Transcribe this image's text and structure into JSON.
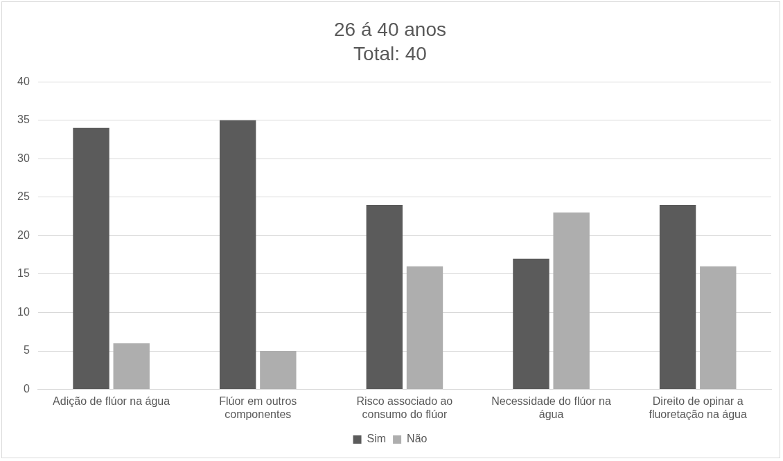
{
  "chart_data": {
    "type": "bar",
    "title": "26 á 40 anos",
    "subtitle": "Total: 40",
    "categories": [
      "Adição de flúor na água",
      "Flúor em outros componentes",
      "Risco associado ao consumo do flúor",
      "Necessidade do flúor na água",
      "Direito de opinar a fluoretação na água"
    ],
    "series": [
      {
        "name": "Sim",
        "color": "#5b5b5b",
        "values": [
          34,
          35,
          24,
          17,
          24
        ]
      },
      {
        "name": "Não",
        "color": "#aeaeae",
        "values": [
          6,
          5,
          16,
          23,
          16
        ]
      }
    ],
    "ylim": [
      0,
      40
    ],
    "yticks": [
      0,
      5,
      10,
      15,
      20,
      25,
      30,
      35,
      40
    ],
    "grid": "y",
    "legend": "bottom"
  }
}
